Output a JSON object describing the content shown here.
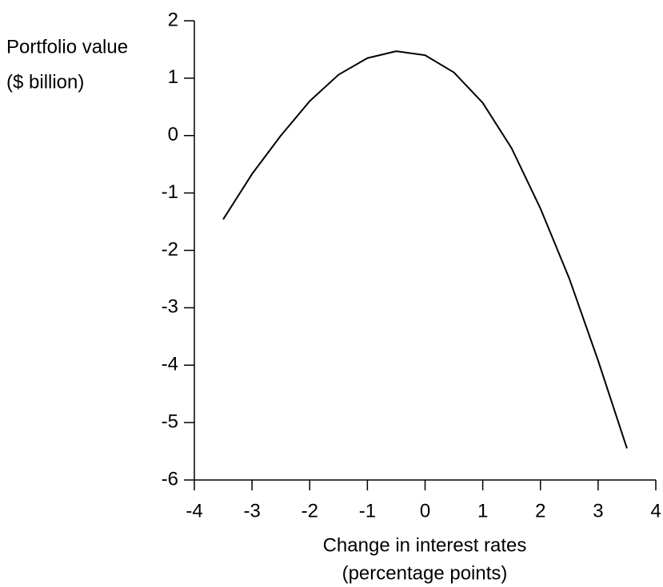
{
  "chart_data": {
    "type": "line",
    "ylabel": [
      "Portfolio value",
      "($ billion)"
    ],
    "xlabel": [
      "Change in interest rates",
      "(percentage points)"
    ],
    "x": [
      -3.5,
      -3,
      -2.5,
      -2,
      -1.5,
      -1,
      -0.5,
      0,
      0.5,
      1,
      1.5,
      2,
      2.5,
      3,
      3.5
    ],
    "series": [
      {
        "color": "#000000",
        "values": [
          -1.46,
          -0.67,
          0.0,
          0.6,
          1.06,
          1.35,
          1.47,
          1.4,
          1.1,
          0.57,
          -0.22,
          -1.27,
          -2.49,
          -3.92,
          -5.45
        ]
      }
    ],
    "xlim": [
      -4,
      4
    ],
    "xticks": [
      -4,
      -3,
      -2,
      -1,
      0,
      1,
      2,
      3,
      4
    ],
    "ylim": [
      -6,
      2
    ],
    "yticks": [
      -6,
      -5,
      -4,
      -3,
      -2,
      -1,
      0,
      1,
      2
    ],
    "grid": false
  }
}
